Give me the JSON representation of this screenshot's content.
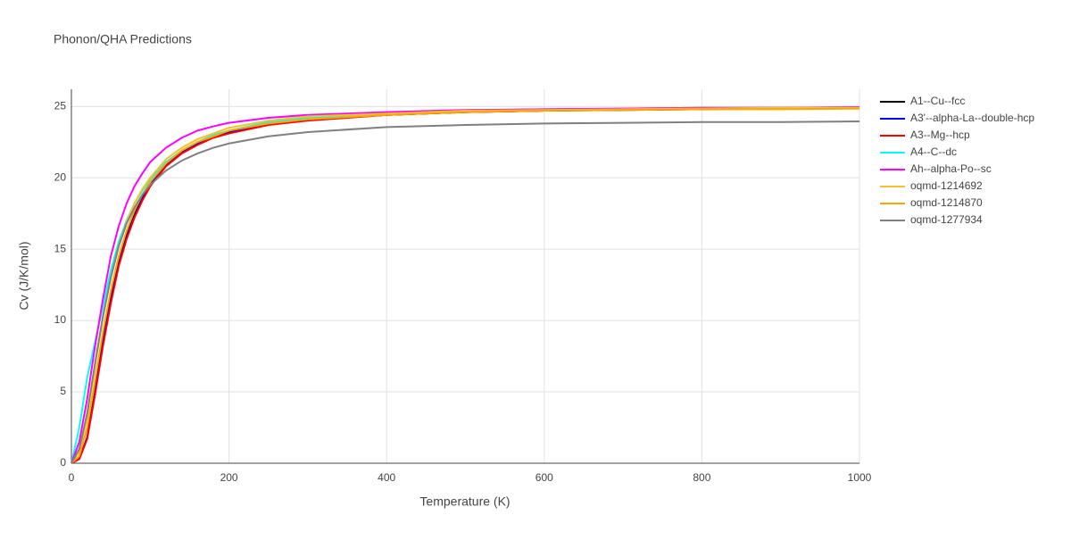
{
  "chart_data": {
    "type": "line",
    "title": "Phonon/QHA Predictions",
    "x_label": "Temperature (K)",
    "y_label": "Cv (J/K/mol)",
    "x": [
      0,
      10,
      20,
      30,
      40,
      50,
      60,
      70,
      80,
      90,
      100,
      120,
      140,
      160,
      180,
      200,
      250,
      300,
      400,
      500,
      600,
      700,
      800,
      900,
      1000
    ],
    "series": [
      {
        "name": "A1--Cu--fcc",
        "color": "#000000",
        "values": [
          0,
          0.3,
          1.8,
          5,
          8.5,
          11.5,
          14,
          15.9,
          17.4,
          18.6,
          19.6,
          20.9,
          21.8,
          22.4,
          22.9,
          23.2,
          23.8,
          24.1,
          24.4,
          24.6,
          24.7,
          24.75,
          24.8,
          24.85,
          24.9
        ]
      },
      {
        "name": "A3'--alpha-La--double-hcp",
        "color": "#0000ff",
        "values": [
          0,
          0.3,
          1.75,
          4.9,
          8.4,
          11.4,
          13.9,
          15.8,
          17.3,
          18.5,
          19.5,
          20.85,
          21.75,
          22.35,
          22.85,
          23.15,
          23.75,
          24.05,
          24.4,
          24.6,
          24.7,
          24.78,
          24.82,
          24.87,
          24.9
        ]
      },
      {
        "name": "A3--Mg--hcp",
        "color": "#ff0000",
        "values": [
          0,
          0.3,
          1.7,
          4.8,
          8.2,
          11.2,
          13.8,
          15.7,
          17.2,
          18.4,
          19.4,
          20.8,
          21.7,
          22.3,
          22.8,
          23.1,
          23.7,
          24,
          24.4,
          24.6,
          24.7,
          24.8,
          24.85,
          24.9,
          24.9
        ]
      },
      {
        "name": "A4--C--dc",
        "color": "#00ffff",
        "values": [
          0,
          2.5,
          6,
          8.5,
          11,
          13.5,
          15.5,
          17,
          18.2,
          19.1,
          19.9,
          21.1,
          21.9,
          22.5,
          23,
          23.3,
          23.9,
          24.2,
          24.5,
          24.7,
          24.8,
          24.85,
          24.9,
          24.9,
          24.95
        ]
      },
      {
        "name": "Ah--alpha-Po--sc",
        "color": "#ff00ff",
        "values": [
          0,
          1.5,
          4.5,
          8.2,
          11.5,
          14.5,
          16.6,
          18.2,
          19.4,
          20.3,
          21.1,
          22.1,
          22.8,
          23.3,
          23.6,
          23.85,
          24.2,
          24.4,
          24.6,
          24.75,
          24.8,
          24.85,
          24.9,
          24.9,
          24.95
        ]
      },
      {
        "name": "oqmd-1214692",
        "color": "#f2c12e",
        "values": [
          0,
          0.8,
          3.2,
          6.8,
          10.2,
          13,
          15.2,
          16.9,
          18.2,
          19.2,
          20,
          21.3,
          22.1,
          22.7,
          23.1,
          23.5,
          24,
          24.3,
          24.5,
          24.7,
          24.75,
          24.8,
          24.85,
          24.9,
          24.9
        ]
      },
      {
        "name": "oqmd-1214870",
        "color": "#ffa500",
        "values": [
          0,
          0.5,
          2.5,
          5.8,
          9.2,
          12.1,
          14.5,
          16.3,
          17.7,
          18.8,
          19.7,
          21,
          21.9,
          22.5,
          22.9,
          23.3,
          23.8,
          24.1,
          24.4,
          24.6,
          24.7,
          24.75,
          24.8,
          24.8,
          24.85
        ]
      },
      {
        "name": "oqmd-1277934",
        "color": "#808080",
        "values": [
          0,
          1,
          3.5,
          7,
          10.3,
          13,
          15.2,
          16.8,
          17.9,
          18.8,
          19.5,
          20.5,
          21.2,
          21.7,
          22.1,
          22.4,
          22.9,
          23.2,
          23.55,
          23.7,
          23.8,
          23.85,
          23.9,
          23.9,
          23.95
        ]
      }
    ],
    "xlim": [
      0,
      1000
    ],
    "ylim": [
      0,
      26.2
    ],
    "xticks": [
      0,
      200,
      400,
      600,
      800,
      1000
    ],
    "yticks": [
      0,
      5,
      10,
      15,
      20,
      25
    ],
    "grid": true,
    "legend": "right"
  }
}
